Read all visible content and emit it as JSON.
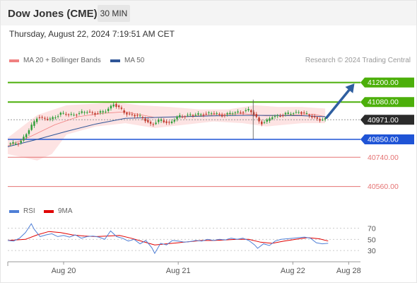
{
  "header": {
    "title": "Dow Jones (CME)",
    "timeframe": "30 MIN"
  },
  "datetime": "Thursday, August 22, 2024 7:19:51 AM CET",
  "credit": "Research © 2024 Trading Central",
  "legend": {
    "price": [
      {
        "label": "MA 20 + Bollinger Bands",
        "color": "#f08080"
      },
      {
        "label": "MA 50",
        "color": "#2f5597"
      }
    ],
    "rsi": [
      {
        "label": "RSI",
        "color": "#4f7fd6"
      },
      {
        "label": "9MA",
        "color": "#e00000"
      }
    ]
  },
  "colors": {
    "up": "#2e9e38",
    "down": "#c0392b",
    "resistance": "#4caf0a",
    "support_blue": "#1f54d6",
    "support_red": "#e57373",
    "arrow": "#2f5fa0",
    "rsi": "#4f7fd6",
    "rsi_ma": "#e00000",
    "ma50": "#2f5597",
    "bb": "#fde3e3",
    "ma20": "#f08080"
  },
  "chart_data": [
    {
      "type": "line",
      "title": "",
      "ylim": [
        40480,
        41290
      ],
      "x_tick_labels": [
        "Aug 20",
        "Aug 21",
        "Aug 22",
        "Aug 28"
      ],
      "last_price": 40971.0,
      "levels": [
        {
          "value": 41200.0,
          "label": "41200.00",
          "kind": "resistance",
          "tag": true
        },
        {
          "value": 41080.0,
          "label": "41080.00",
          "kind": "resistance",
          "tag": true
        },
        {
          "value": 40971.0,
          "label": "40971.00",
          "kind": "last",
          "tag": true
        },
        {
          "value": 40850.0,
          "label": "40850.00",
          "kind": "support_blue",
          "tag": true
        },
        {
          "value": 40740.0,
          "label": "40740.00",
          "kind": "support_red",
          "tag": false
        },
        {
          "value": 40560.0,
          "label": "40560.00",
          "kind": "support_red",
          "tag": false
        }
      ],
      "close_path": [
        [
          0,
          40820
        ],
        [
          4,
          40830
        ],
        [
          7,
          40900
        ],
        [
          10,
          40990
        ],
        [
          14,
          40970
        ],
        [
          18,
          41010
        ],
        [
          21,
          41000
        ],
        [
          24,
          41010
        ],
        [
          27,
          41020
        ],
        [
          30,
          41010
        ],
        [
          33,
          41020
        ],
        [
          36,
          41070
        ],
        [
          38,
          41040
        ],
        [
          40,
          41010
        ],
        [
          43,
          41000
        ],
        [
          46,
          40980
        ],
        [
          49,
          40940
        ],
        [
          52,
          40970
        ],
        [
          55,
          40950
        ],
        [
          58,
          40990
        ],
        [
          61,
          41000
        ],
        [
          64,
          41000
        ],
        [
          67,
          41010
        ],
        [
          70,
          41010
        ],
        [
          73,
          41000
        ],
        [
          76,
          41010
        ],
        [
          79,
          41020
        ],
        [
          82,
          41030
        ],
        [
          84,
          41000
        ],
        [
          86,
          40950
        ],
        [
          88,
          40960
        ],
        [
          90,
          40990
        ],
        [
          93,
          41000
        ],
        [
          96,
          41010
        ],
        [
          99,
          41020
        ],
        [
          102,
          41000
        ],
        [
          104,
          40990
        ],
        [
          106,
          40970
        ],
        [
          108,
          40971
        ]
      ],
      "projection": [
        [
          108,
          40971
        ],
        [
          118,
          41200
        ]
      ],
      "x_range": [
        0,
        120
      ],
      "price_ticks_x": [
        19,
        58,
        97,
        116
      ],
      "ma50_path": [
        [
          0,
          40805
        ],
        [
          10,
          40850
        ],
        [
          20,
          40900
        ],
        [
          30,
          40945
        ],
        [
          40,
          40980
        ],
        [
          50,
          40985
        ],
        [
          60,
          40990
        ],
        [
          70,
          40995
        ],
        [
          80,
          40998
        ],
        [
          90,
          40998
        ],
        [
          100,
          40996
        ],
        [
          108,
          40990
        ]
      ],
      "ma20_path": [
        [
          0,
          40810
        ],
        [
          8,
          40870
        ],
        [
          16,
          40940
        ],
        [
          24,
          40990
        ],
        [
          32,
          41010
        ],
        [
          40,
          41020
        ],
        [
          50,
          40985
        ],
        [
          60,
          40990
        ],
        [
          70,
          41002
        ],
        [
          80,
          41008
        ],
        [
          88,
          40995
        ],
        [
          96,
          41000
        ],
        [
          104,
          41005
        ],
        [
          108,
          40990
        ]
      ],
      "bb_upper": [
        [
          0,
          40860
        ],
        [
          10,
          41000
        ],
        [
          20,
          41060
        ],
        [
          30,
          41070
        ],
        [
          36,
          41080
        ],
        [
          45,
          41060
        ],
        [
          55,
          41050
        ],
        [
          65,
          41035
        ],
        [
          75,
          41035
        ],
        [
          84,
          41060
        ],
        [
          92,
          41050
        ],
        [
          100,
          41050
        ],
        [
          108,
          41040
        ]
      ],
      "bb_lower": [
        [
          0,
          40760
        ],
        [
          5,
          40740
        ],
        [
          10,
          40720
        ],
        [
          15,
          40760
        ],
        [
          20,
          40880
        ],
        [
          30,
          40930
        ],
        [
          40,
          40950
        ],
        [
          50,
          40920
        ],
        [
          60,
          40940
        ],
        [
          70,
          40960
        ],
        [
          80,
          40950
        ],
        [
          88,
          40930
        ],
        [
          100,
          40950
        ],
        [
          108,
          40950
        ]
      ]
    },
    {
      "type": "line",
      "title": "",
      "ylim": [
        15,
        82
      ],
      "y_ticks": [
        70,
        50,
        30
      ],
      "x_range": [
        0,
        120
      ],
      "series": [
        {
          "name": "RSI",
          "values": [
            [
              0,
              48
            ],
            [
              2,
              47
            ],
            [
              4,
              52
            ],
            [
              6,
              62
            ],
            [
              8,
              78
            ],
            [
              9,
              68
            ],
            [
              11,
              55
            ],
            [
              13,
              58
            ],
            [
              15,
              60
            ],
            [
              17,
              55
            ],
            [
              19,
              57
            ],
            [
              21,
              54
            ],
            [
              23,
              58
            ],
            [
              25,
              52
            ],
            [
              27,
              55
            ],
            [
              29,
              56
            ],
            [
              31,
              54
            ],
            [
              33,
              50
            ],
            [
              35,
              65
            ],
            [
              37,
              55
            ],
            [
              39,
              52
            ],
            [
              41,
              47
            ],
            [
              43,
              50
            ],
            [
              45,
              42
            ],
            [
              47,
              48
            ],
            [
              49,
              35
            ],
            [
              50,
              25
            ],
            [
              52,
              43
            ],
            [
              54,
              40
            ],
            [
              56,
              48
            ],
            [
              58,
              47
            ],
            [
              60,
              45
            ],
            [
              62,
              46
            ],
            [
              64,
              48
            ],
            [
              66,
              47
            ],
            [
              68,
              50
            ],
            [
              70,
              48
            ],
            [
              72,
              50
            ],
            [
              74,
              49
            ],
            [
              76,
              52
            ],
            [
              78,
              50
            ],
            [
              80,
              52
            ],
            [
              82,
              48
            ],
            [
              84,
              40
            ],
            [
              85,
              34
            ],
            [
              87,
              42
            ],
            [
              89,
              39
            ],
            [
              91,
              47
            ],
            [
              93,
              50
            ],
            [
              95,
              51
            ],
            [
              97,
              52
            ],
            [
              99,
              53
            ],
            [
              101,
              54
            ],
            [
              103,
              52
            ],
            [
              105,
              44
            ],
            [
              107,
              42
            ],
            [
              109,
              43
            ]
          ]
        },
        {
          "name": "9MA",
          "values": [
            [
              0,
              48
            ],
            [
              6,
              50
            ],
            [
              10,
              58
            ],
            [
              14,
              64
            ],
            [
              18,
              62
            ],
            [
              22,
              58
            ],
            [
              26,
              56
            ],
            [
              30,
              55
            ],
            [
              34,
              56
            ],
            [
              38,
              57
            ],
            [
              42,
              52
            ],
            [
              46,
              46
            ],
            [
              50,
              40
            ],
            [
              54,
              42
            ],
            [
              58,
              44
            ],
            [
              62,
              46
            ],
            [
              66,
              48
            ],
            [
              70,
              48
            ],
            [
              74,
              49
            ],
            [
              78,
              50
            ],
            [
              82,
              50
            ],
            [
              86,
              45
            ],
            [
              90,
              43
            ],
            [
              94,
              47
            ],
            [
              98,
              50
            ],
            [
              102,
              53
            ],
            [
              106,
              51
            ],
            [
              109,
              47
            ]
          ]
        }
      ]
    }
  ]
}
